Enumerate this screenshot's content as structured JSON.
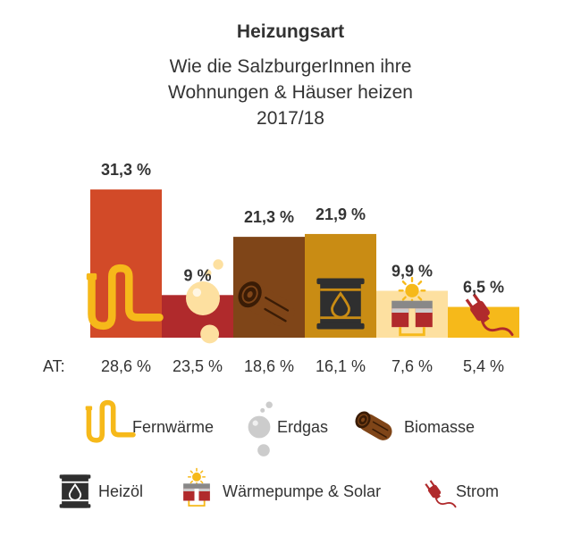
{
  "chart_data": {
    "type": "bar",
    "title": "Heizungsart",
    "subtitle_lines": [
      "Wie die SalzburgerInnen ihre",
      "Wohnungen & Häuser heizen",
      "2017/18"
    ],
    "categories": [
      "Fernwärme",
      "Erdgas",
      "Biomasse",
      "Heizöl",
      "Wärmepumpe & Solar",
      "Strom"
    ],
    "values": [
      31.3,
      9.0,
      21.3,
      21.9,
      9.9,
      6.5
    ],
    "value_labels": [
      "31,3 %",
      "9 %",
      "21,3 %",
      "21,9 %",
      "9,9 %",
      "6,5 %"
    ],
    "at_label": "AT:",
    "at_values": [
      28.6,
      23.5,
      18.6,
      16.1,
      7.6,
      5.4
    ],
    "at_value_labels": [
      "28,6 %",
      "23,5 %",
      "18,6 %",
      "16,1 %",
      "7,6 %",
      "5,4 %"
    ],
    "colors": [
      "#d24a28",
      "#b02a2c",
      "#7f4518",
      "#c98c14",
      "#fde0a0",
      "#f6b91a"
    ],
    "icon_names": [
      "pipe-icon",
      "bubbles-icon",
      "log-icon",
      "oil-barrel-icon",
      "heatpump-solar-icon",
      "plug-icon"
    ],
    "ylim": [
      0,
      35
    ],
    "grid": false,
    "legend_placement": "bottom"
  }
}
